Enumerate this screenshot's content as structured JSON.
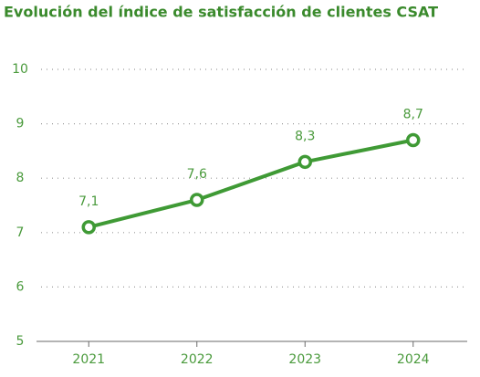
{
  "chart_data": {
    "type": "line",
    "title": "Evolución del índice de satisfacción de clientes CSAT",
    "categories": [
      "2021",
      "2022",
      "2023",
      "2024"
    ],
    "series": [
      {
        "name": "CSAT",
        "color": "#3f9a35",
        "values": [
          7.1,
          7.6,
          8.3,
          8.7
        ],
        "value_labels": [
          "7,1",
          "7,6",
          "8,3",
          "8,7"
        ]
      }
    ],
    "ylim": [
      5,
      10
    ],
    "yticks": [
      5,
      6,
      7,
      8,
      9,
      10
    ],
    "grid": true
  }
}
